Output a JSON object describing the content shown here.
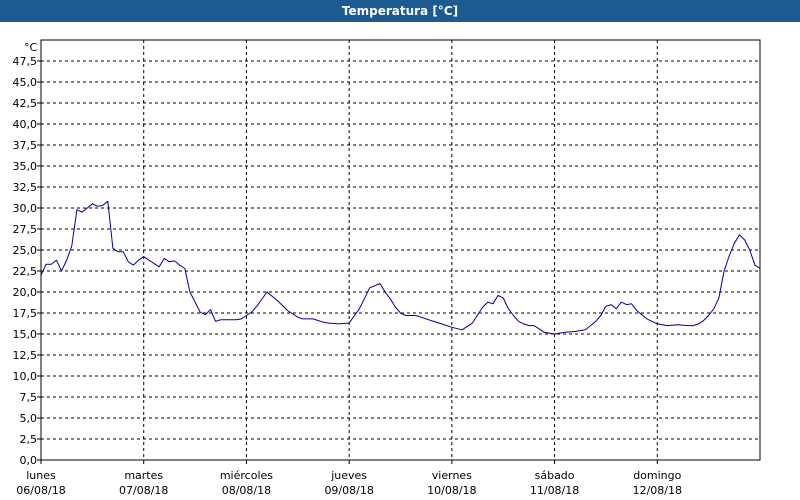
{
  "window": {
    "title": "Temperatura [°C]"
  },
  "colors": {
    "titlebar": "#1c5b91",
    "series": "#0000a0",
    "grid": "#000000"
  },
  "chart_data": {
    "type": "line",
    "title": "Temperatura [°C]",
    "ylabel": "°C",
    "ylim": [
      0,
      50
    ],
    "xlim": [
      0,
      7
    ],
    "grid": true,
    "grid_style": "dashed",
    "y_ticks": [
      "0,0",
      "2,5",
      "5,0",
      "7,5",
      "10,0",
      "12,5",
      "15,0",
      "17,5",
      "20,0",
      "22,5",
      "25,0",
      "27,5",
      "30,0",
      "32,5",
      "35,0",
      "37,5",
      "40,0",
      "42,5",
      "45,0",
      "47,5"
    ],
    "x_ticks": [
      {
        "day": "lunes",
        "date": "06/08/18"
      },
      {
        "day": "martes",
        "date": "07/08/18"
      },
      {
        "day": "miércoles",
        "date": "08/08/18"
      },
      {
        "day": "jueves",
        "date": "09/08/18"
      },
      {
        "day": "viernes",
        "date": "10/08/18"
      },
      {
        "day": "sábado",
        "date": "11/08/18"
      },
      {
        "day": "domingo",
        "date": "12/08/18"
      }
    ],
    "series": [
      {
        "x": [
          0,
          0.05,
          0.1,
          0.15,
          0.2,
          0.25,
          0.3,
          0.35,
          0.4,
          0.45,
          0.5,
          0.55,
          0.6,
          0.65,
          0.7,
          0.75,
          0.8,
          0.85,
          0.9,
          0.95,
          1.0,
          1.05,
          1.1,
          1.15,
          1.2,
          1.25,
          1.3,
          1.35,
          1.4,
          1.45,
          1.5,
          1.55,
          1.6,
          1.65,
          1.7,
          1.75,
          1.8,
          1.85,
          1.9,
          1.95,
          2.0,
          2.05,
          2.1,
          2.2,
          2.3,
          2.4,
          2.5,
          2.55,
          2.6,
          2.65,
          2.7,
          2.75,
          2.8,
          2.9,
          3.0,
          3.1,
          3.2,
          3.3,
          3.35,
          3.4,
          3.45,
          3.5,
          3.55,
          3.6,
          3.65,
          3.7,
          3.8,
          3.9,
          4.0,
          4.1,
          4.2,
          4.3,
          4.35,
          4.4,
          4.45,
          4.5,
          4.55,
          4.6,
          4.65,
          4.7,
          4.75,
          4.8,
          4.9,
          5.0,
          5.1,
          5.2,
          5.3,
          5.35,
          5.4,
          5.45,
          5.5,
          5.55,
          5.6,
          5.65,
          5.7,
          5.75,
          5.8,
          5.9,
          6.0,
          6.1,
          6.2,
          6.3,
          6.35,
          6.4,
          6.45,
          6.5,
          6.55,
          6.6,
          6.65,
          6.7,
          6.75,
          6.8,
          6.85,
          6.9,
          6.95,
          7.0
        ],
        "values": [
          22.0,
          23.3,
          23.3,
          23.8,
          22.5,
          23.8,
          25.5,
          29.8,
          29.5,
          30.0,
          30.5,
          30.2,
          30.3,
          30.8,
          25.2,
          24.8,
          24.8,
          23.6,
          23.2,
          23.8,
          24.2,
          23.8,
          23.4,
          23.0,
          24.0,
          23.6,
          23.7,
          23.2,
          22.8,
          20.0,
          18.8,
          17.6,
          17.3,
          17.9,
          16.5,
          16.7,
          16.7,
          16.7,
          16.7,
          16.8,
          17.2,
          17.6,
          18.3,
          20.0,
          19.0,
          17.8,
          17.0,
          16.8,
          16.8,
          16.8,
          16.6,
          16.4,
          16.3,
          16.2,
          16.3,
          18.0,
          20.5,
          21.0,
          20.0,
          19.2,
          18.2,
          17.5,
          17.2,
          17.2,
          17.2,
          17.0,
          16.6,
          16.2,
          15.8,
          15.5,
          16.3,
          18.2,
          18.8,
          18.6,
          19.6,
          19.3,
          18.0,
          17.2,
          16.5,
          16.2,
          16.0,
          16.0,
          15.2,
          15.0,
          15.2,
          15.3,
          15.5,
          16.0,
          16.5,
          17.2,
          18.3,
          18.5,
          18.0,
          18.8,
          18.5,
          18.6,
          17.8,
          16.8,
          16.2,
          16.0,
          16.1,
          16.0,
          16.0,
          16.2,
          16.6,
          17.2,
          18.0,
          19.3,
          22.5,
          24.3,
          25.8,
          26.8,
          26.2,
          25.0,
          23.2,
          22.8
        ]
      }
    ]
  }
}
